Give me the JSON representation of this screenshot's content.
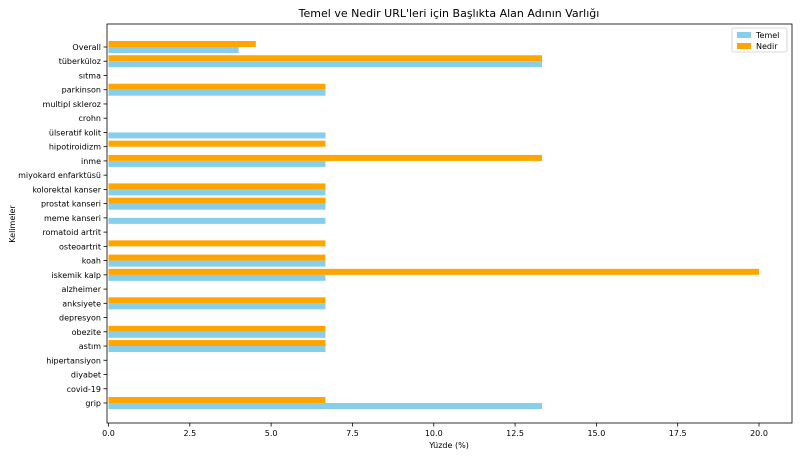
{
  "chart_data": {
    "type": "bar",
    "orientation": "horizontal",
    "title": "Temel ve Nedir URL'leri için Başlıkta Alan Adının Varlığı",
    "xlabel": "Yüzde (%)",
    "ylabel": "Kelimeler",
    "xlim": [
      0,
      20.5
    ],
    "xticks": [
      "0.0",
      "2.5",
      "5.0",
      "7.5",
      "10.0",
      "12.5",
      "15.0",
      "17.5",
      "20.0"
    ],
    "grid": false,
    "legend_position": "top-right",
    "categories": [
      "grip",
      "covid-19",
      "diyabet",
      "hipertansiyon",
      "astım",
      "obezite",
      "depresyon",
      "anksiyete",
      "alzheimer",
      "iskemik kalp",
      "koah",
      "osteoartrit",
      "romatoid artrit",
      "meme kanseri",
      "prostat kanseri",
      "kolorektal kanser",
      "miyokard enfarktüsü",
      "inme",
      "hipotiroidizm",
      "ülseratif kolit",
      "crohn",
      "multipl skleroz",
      "parkinson",
      "sıtma",
      "tüberküloz",
      "Overall"
    ],
    "series": [
      {
        "name": "Temel",
        "color": "#87ceeb",
        "values": [
          13.33,
          0,
          0,
          0,
          6.67,
          6.67,
          0,
          6.67,
          0,
          6.67,
          6.67,
          0,
          0,
          6.67,
          6.67,
          6.67,
          0,
          6.67,
          0,
          6.67,
          0,
          0,
          6.67,
          0,
          13.33,
          4.0
        ]
      },
      {
        "name": "Nedir",
        "color": "#ffa500",
        "values": [
          6.67,
          0,
          0,
          0,
          6.67,
          6.67,
          0,
          6.67,
          0,
          20.0,
          6.67,
          6.67,
          0,
          0,
          6.67,
          6.67,
          0,
          13.33,
          6.67,
          0,
          0,
          0,
          6.67,
          0,
          13.33,
          4.53
        ]
      }
    ]
  }
}
